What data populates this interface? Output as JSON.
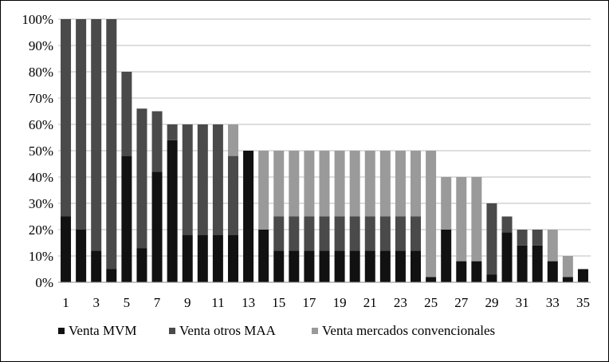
{
  "chart_data": {
    "type": "bar",
    "stacked": true,
    "title": "",
    "xlabel": "",
    "ylabel": "",
    "ylim": [
      0,
      1
    ],
    "grid": true,
    "legend_position": "bottom",
    "categories": [
      "1",
      "2",
      "3",
      "4",
      "5",
      "6",
      "7",
      "8",
      "9",
      "10",
      "11",
      "12",
      "13",
      "14",
      "15",
      "16",
      "17",
      "18",
      "19",
      "20",
      "21",
      "22",
      "23",
      "24",
      "25",
      "26",
      "27",
      "28",
      "29",
      "30",
      "31",
      "32",
      "33",
      "34",
      "35"
    ],
    "x_tick_labels": [
      "1",
      "3",
      "5",
      "7",
      "9",
      "11",
      "13",
      "15",
      "17",
      "19",
      "21",
      "23",
      "25",
      "27",
      "29",
      "31",
      "33",
      "35"
    ],
    "y_tick_labels": [
      "0%",
      "10%",
      "20%",
      "30%",
      "40%",
      "50%",
      "60%",
      "70%",
      "80%",
      "90%",
      "100%"
    ],
    "series": [
      {
        "name": "Venta MVM",
        "color": "#111111",
        "values": [
          0.25,
          0.2,
          0.12,
          0.05,
          0.48,
          0.13,
          0.42,
          0.54,
          0.18,
          0.18,
          0.18,
          0.18,
          0.5,
          0.2,
          0.12,
          0.12,
          0.12,
          0.12,
          0.12,
          0.12,
          0.12,
          0.12,
          0.12,
          0.12,
          0.02,
          0.2,
          0.08,
          0.08,
          0.03,
          0.19,
          0.14,
          0.14,
          0.08,
          0.02,
          0.05
        ]
      },
      {
        "name": "Venta otros MAA",
        "color": "#4a4a4a",
        "values": [
          0.75,
          0.8,
          0.88,
          0.95,
          0.32,
          0.53,
          0.23,
          0.06,
          0.42,
          0.42,
          0.42,
          0.3,
          0.0,
          0.0,
          0.13,
          0.13,
          0.13,
          0.13,
          0.13,
          0.13,
          0.13,
          0.13,
          0.13,
          0.13,
          0.0,
          0.0,
          0.0,
          0.0,
          0.27,
          0.06,
          0.06,
          0.06,
          0.0,
          0.0,
          0.0
        ]
      },
      {
        "name": "Venta mercados convencionales",
        "color": "#9a9a9a",
        "values": [
          0,
          0,
          0,
          0,
          0,
          0,
          0,
          0,
          0,
          0,
          0,
          0.12,
          0,
          0.3,
          0.25,
          0.25,
          0.25,
          0.25,
          0.25,
          0.25,
          0.25,
          0.25,
          0.25,
          0.25,
          0.48,
          0.2,
          0.32,
          0.32,
          0,
          0,
          0,
          0,
          0.12,
          0.08,
          0
        ]
      }
    ]
  }
}
